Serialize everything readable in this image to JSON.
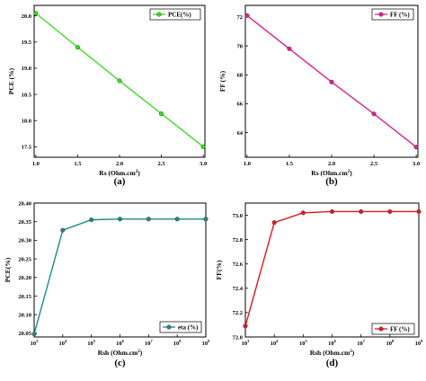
{
  "chart_data": [
    {
      "type": "line",
      "caption": "(a)",
      "x": [
        1.0,
        1.5,
        2.0,
        2.5,
        3.0
      ],
      "y": [
        20.05,
        19.4,
        18.76,
        18.13,
        17.5
      ],
      "xlabel": "Rs (Ohm.cm",
      "xlabel_sup": "2",
      "xlabel_end": ")",
      "ylabel": "PCE (%)",
      "xlim": [
        0.98,
        3.02
      ],
      "ylim": [
        17.3,
        20.2
      ],
      "xticks": [
        "1.0",
        "1.5",
        "2.0",
        "2.5",
        "3.0"
      ],
      "xtick_values": [
        1.0,
        1.5,
        2.0,
        2.5,
        3.0
      ],
      "yticks": [
        "17.5",
        "18.0",
        "18.5",
        "19.0",
        "19.5",
        "20.0"
      ],
      "ytick_values": [
        17.5,
        18.0,
        18.5,
        19.0,
        19.5,
        20.0
      ],
      "legend": "PCE(%)",
      "legend_position": "top-right",
      "color": "#3bdc1f",
      "grid": false
    },
    {
      "type": "line",
      "caption": "(b)",
      "x": [
        1.0,
        1.5,
        2.0,
        2.5,
        3.0
      ],
      "y": [
        72.1,
        69.8,
        67.5,
        65.3,
        63.0
      ],
      "xlabel": "Rs (Ohm.cm",
      "xlabel_sup": "2",
      "xlabel_end": ")",
      "ylabel": "FF (%)",
      "xlim": [
        0.98,
        3.02
      ],
      "ylim": [
        62.3,
        72.8
      ],
      "xticks": [
        "1.0",
        "1.5",
        "2.0",
        "2.5",
        "3.0"
      ],
      "xtick_values": [
        1.0,
        1.5,
        2.0,
        2.5,
        3.0
      ],
      "yticks": [
        "64",
        "66",
        "68",
        "70",
        "72"
      ],
      "ytick_values": [
        64,
        66,
        68,
        70,
        72
      ],
      "legend": "FF (%)",
      "legend_position": "top-right",
      "color": "#e01f8c",
      "grid": false
    },
    {
      "type": "line",
      "caption": "(c)",
      "x": [
        1000,
        10000,
        100000,
        1000000,
        10000000,
        100000000,
        1000000000
      ],
      "y": [
        20.048,
        20.327,
        20.355,
        20.357,
        20.357,
        20.357,
        20.357
      ],
      "xscale": "log",
      "xlabel": "Rsh (Ohm.cm",
      "xlabel_sup": "2",
      "xlabel_end": ")",
      "ylabel": "PCE(%)",
      "xlim": [
        1000,
        1000000000
      ],
      "ylim": [
        20.04,
        20.4
      ],
      "xticks": [
        "10",
        "10",
        "10",
        "10",
        "10",
        "10",
        "10"
      ],
      "xtick_exponents": [
        "3",
        "4",
        "5",
        "6",
        "7",
        "8",
        "9"
      ],
      "xtick_values": [
        1000,
        10000,
        100000,
        1000000,
        10000000,
        100000000,
        1000000000
      ],
      "yticks": [
        "20.05",
        "20.10",
        "20.15",
        "20.20",
        "20.25",
        "20.30",
        "20.35",
        "20.40"
      ],
      "ytick_values": [
        20.05,
        20.1,
        20.15,
        20.2,
        20.25,
        20.3,
        20.35,
        20.4
      ],
      "legend": "eta (%)",
      "legend_position": "bottom-right",
      "color": "#1e8a8a",
      "grid": false
    },
    {
      "type": "line",
      "caption": "(d)",
      "x": [
        1000,
        10000,
        100000,
        1000000,
        10000000,
        100000000,
        1000000000
      ],
      "y": [
        72.09,
        72.94,
        73.02,
        73.03,
        73.03,
        73.03,
        73.03
      ],
      "xscale": "log",
      "xlabel": "Rsh (Ohm.cm",
      "xlabel_sup": "2",
      "xlabel_end": ")",
      "ylabel": "FF(%)",
      "xlim": [
        1000,
        1000000000
      ],
      "ylim": [
        72.0,
        73.1
      ],
      "xticks": [
        "10",
        "10",
        "10",
        "10",
        "10",
        "10",
        "10"
      ],
      "xtick_exponents": [
        "3",
        "4",
        "5",
        "6",
        "7",
        "8",
        "9"
      ],
      "xtick_values": [
        1000,
        10000,
        100000,
        1000000,
        10000000,
        100000000,
        1000000000
      ],
      "yticks": [
        "72.0",
        "72.2",
        "72.4",
        "72.6",
        "72.8",
        "73.0"
      ],
      "ytick_values": [
        72.0,
        72.2,
        72.4,
        72.6,
        72.8,
        73.0
      ],
      "legend": "FF (%)",
      "legend_position": "bottom-right",
      "color": "#e8141e",
      "grid": false
    }
  ]
}
